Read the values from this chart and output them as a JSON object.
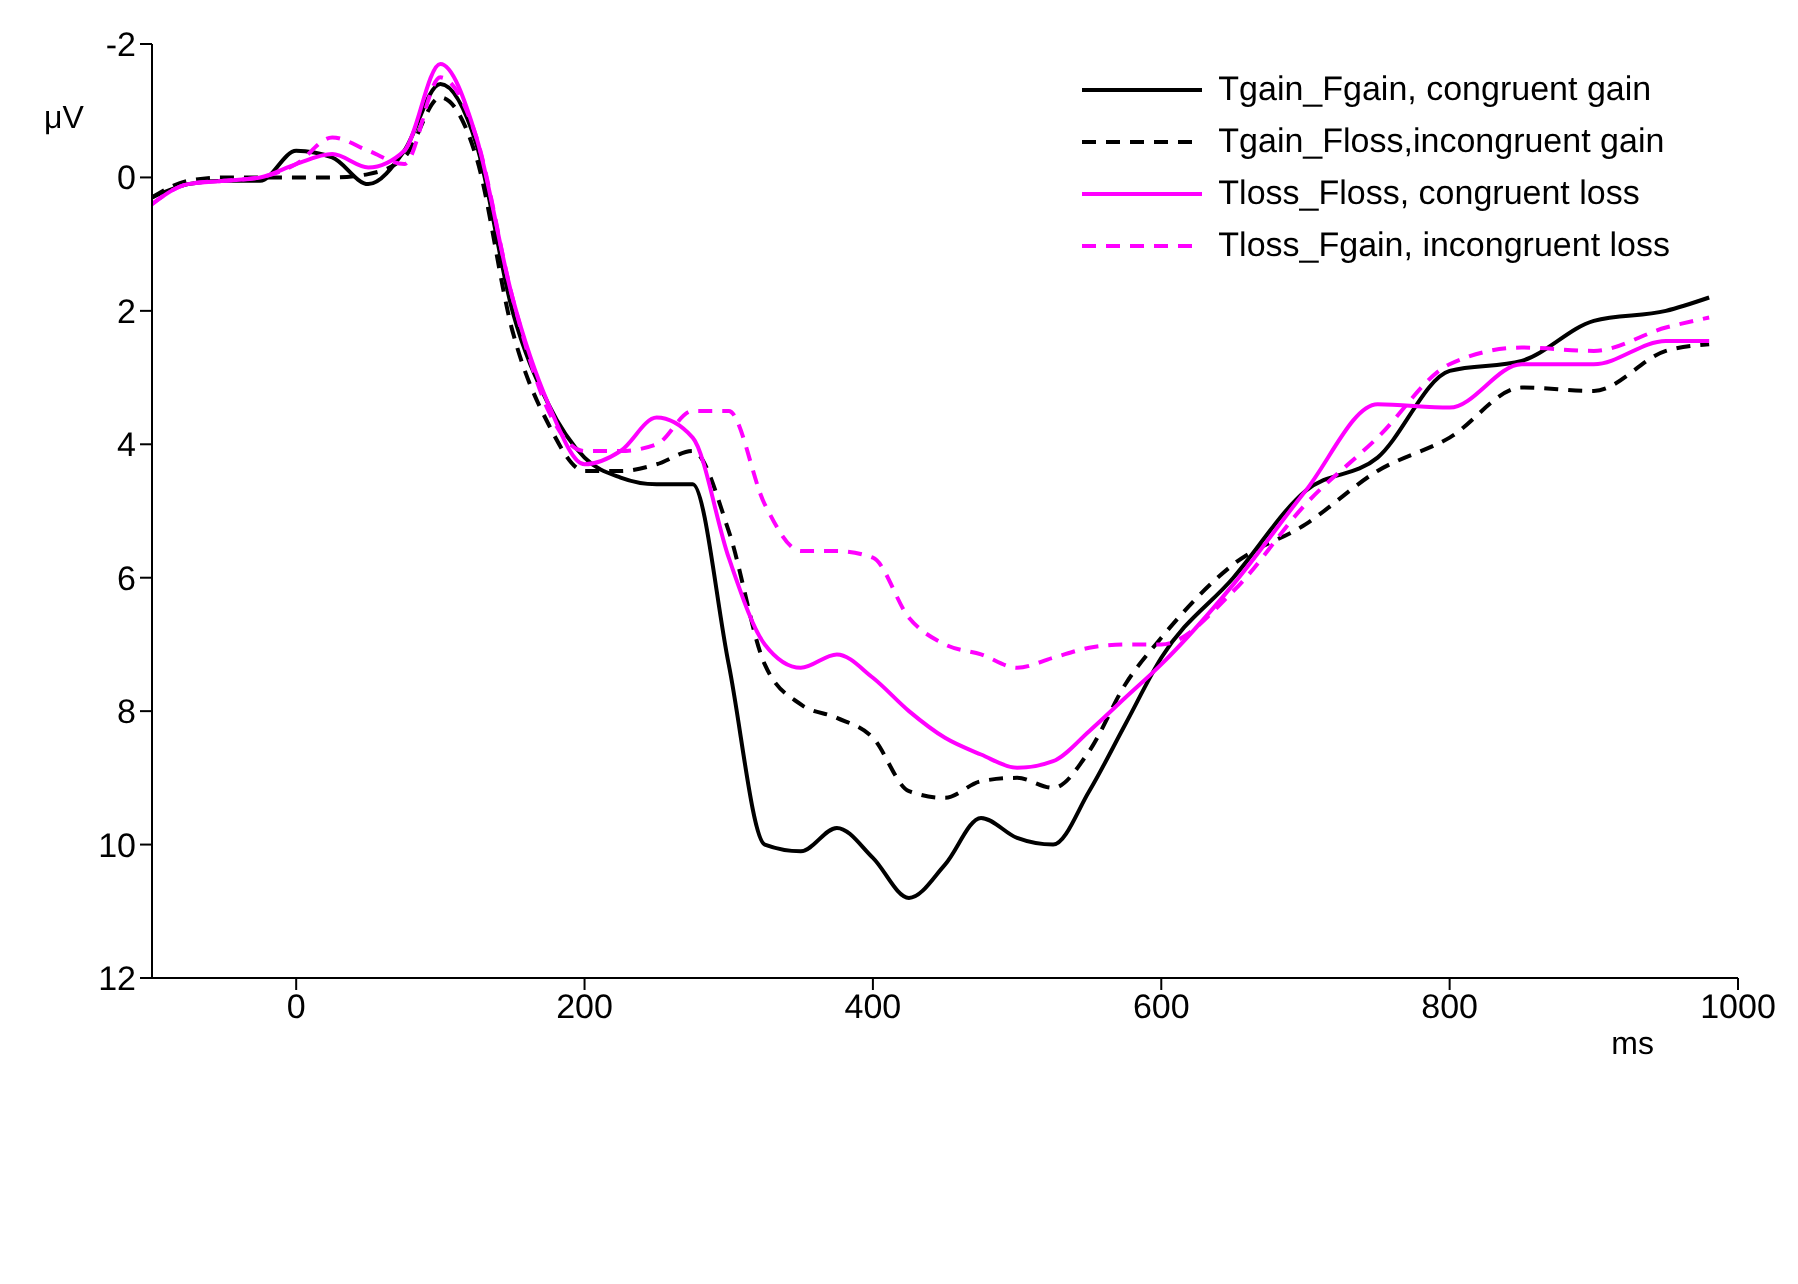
{
  "chart_data": {
    "type": "line",
    "xlabel": "ms",
    "ylabel": "μV",
    "x": [
      -100,
      -75,
      -50,
      -25,
      0,
      25,
      50,
      75,
      100,
      125,
      150,
      175,
      200,
      225,
      250,
      275,
      300,
      325,
      350,
      375,
      400,
      425,
      450,
      475,
      500,
      525,
      550,
      575,
      600,
      650,
      700,
      750,
      800,
      850,
      900,
      950,
      980
    ],
    "series": [
      {
        "name": "Tgain_Fgain, congruent gain",
        "color": "#000000",
        "line_style": "solid",
        "values": [
          0.3,
          0.1,
          0.05,
          0.05,
          -0.4,
          -0.3,
          0.1,
          -0.4,
          -1.4,
          -0.5,
          2.0,
          3.4,
          4.2,
          4.5,
          4.6,
          4.6,
          7.3,
          10.0,
          10.1,
          9.75,
          10.2,
          10.8,
          10.3,
          9.6,
          9.9,
          10.0,
          9.2,
          8.2,
          7.2,
          6.0,
          4.7,
          4.2,
          2.9,
          2.75,
          2.15,
          2.0,
          1.8
        ]
      },
      {
        "name": "Tgain_Floss,incongruent gain",
        "color": "#000000",
        "line_style": "dashed",
        "values": [
          0.3,
          0.05,
          0.0,
          0.0,
          0.0,
          0.0,
          -0.05,
          -0.3,
          -1.2,
          -0.3,
          2.3,
          3.7,
          4.4,
          4.4,
          4.3,
          4.1,
          5.3,
          7.3,
          7.9,
          8.1,
          8.4,
          9.2,
          9.3,
          9.05,
          9.0,
          9.15,
          8.6,
          7.6,
          6.9,
          5.8,
          5.2,
          4.4,
          3.9,
          3.15,
          3.2,
          2.6,
          2.5
        ]
      },
      {
        "name": "Tloss_Floss, congruent loss",
        "color": "#ff00ff",
        "line_style": "solid",
        "values": [
          0.4,
          0.1,
          0.05,
          0.0,
          -0.2,
          -0.35,
          -0.15,
          -0.4,
          -1.7,
          -0.6,
          1.8,
          3.4,
          4.3,
          4.1,
          3.6,
          3.9,
          5.7,
          7.0,
          7.35,
          7.15,
          7.5,
          8.0,
          8.4,
          8.65,
          8.85,
          8.75,
          8.3,
          7.8,
          7.3,
          6.1,
          4.7,
          3.4,
          3.45,
          2.8,
          2.8,
          2.45,
          2.45
        ]
      },
      {
        "name": "Tloss_Fgain, incongruent loss",
        "color": "#ff00ff",
        "line_style": "dashed",
        "values": [
          0.4,
          0.1,
          0.05,
          0.0,
          -0.2,
          -0.6,
          -0.4,
          -0.2,
          -1.5,
          -0.6,
          1.8,
          3.5,
          4.1,
          4.1,
          4.0,
          3.5,
          3.5,
          4.9,
          5.6,
          5.6,
          5.7,
          6.6,
          7.0,
          7.15,
          7.35,
          7.2,
          7.05,
          7.0,
          7.0,
          6.2,
          4.9,
          3.9,
          2.8,
          2.55,
          2.6,
          2.25,
          2.1
        ]
      }
    ],
    "xlim": [
      -100,
      1000
    ],
    "xticks": [
      0,
      200,
      400,
      600,
      800,
      1000
    ],
    "ylim": [
      12,
      -2
    ],
    "yticks": [
      -2,
      0,
      2,
      4,
      6,
      8,
      10,
      12
    ],
    "grid": false,
    "legend": "top right",
    "marker": "none"
  }
}
